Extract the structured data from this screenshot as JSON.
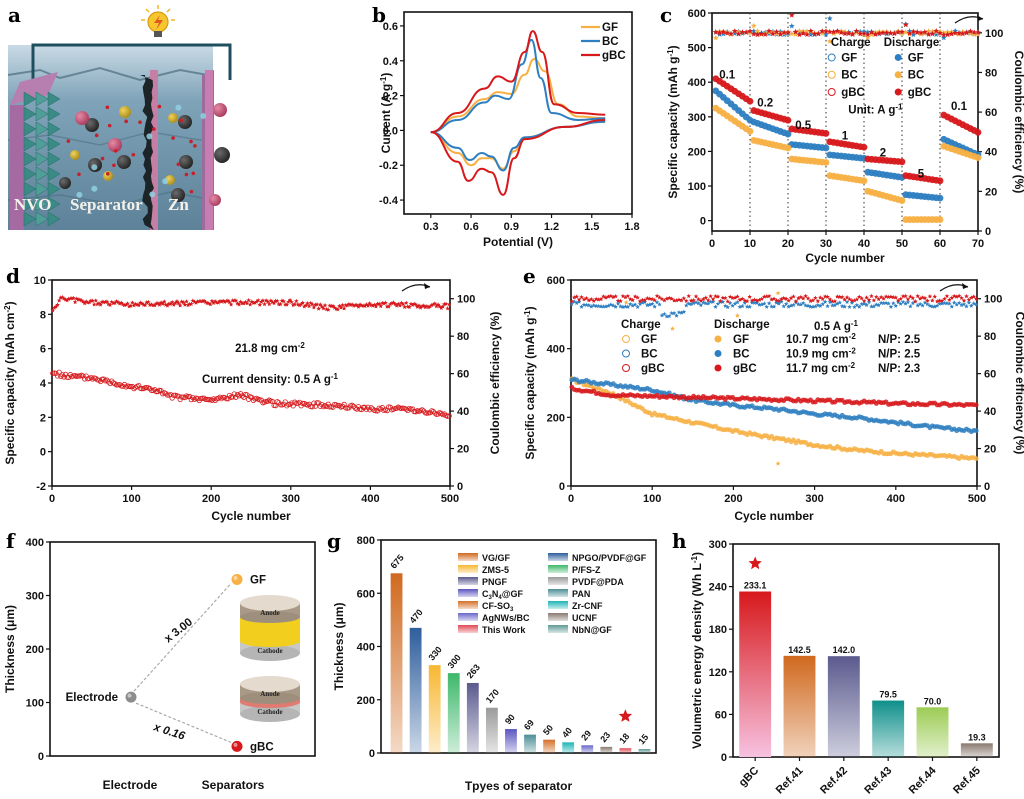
{
  "figure": {
    "panel_labels": [
      "a",
      "b",
      "c",
      "d",
      "e",
      "f",
      "g",
      "h"
    ]
  },
  "colors": {
    "GF_orange": "#f7b044",
    "BC_blue": "#2e7fc1",
    "gBC_red": "#d7191c",
    "axis": "#111111",
    "ref_gray": "#9a9a9a"
  },
  "panel_a": {
    "labels": [
      "NVO",
      "Separator",
      "Zn"
    ],
    "icons": [
      "lightbulb-icon"
    ]
  },
  "chart_data": [
    {
      "panel": "b",
      "type": "line",
      "title": "",
      "xlabel": "Potential  (V)",
      "ylabel": "Current (A g⁻¹)",
      "xlim": [
        0.1,
        1.8
      ],
      "ylim": [
        -0.48,
        0.68
      ],
      "xticks": [
        0.3,
        0.6,
        0.9,
        1.2,
        1.5,
        1.8
      ],
      "yticks": [
        -0.4,
        -0.2,
        0.0,
        0.2,
        0.4,
        0.6
      ],
      "legend": "top-right",
      "series": [
        {
          "name": "GF",
          "color": "#f7b044",
          "anodic": [
            [
              0.3,
              -0.01
            ],
            [
              0.5,
              0.08
            ],
            [
              0.7,
              0.18
            ],
            [
              0.8,
              0.22
            ],
            [
              0.9,
              0.21
            ],
            [
              1.0,
              0.32
            ],
            [
              1.07,
              0.41
            ],
            [
              1.15,
              0.34
            ],
            [
              1.25,
              0.15
            ],
            [
              1.4,
              0.08
            ],
            [
              1.6,
              0.07
            ]
          ],
          "cathodic": [
            [
              1.6,
              0.05
            ],
            [
              1.3,
              0.02
            ],
            [
              1.0,
              -0.04
            ],
            [
              0.92,
              -0.12
            ],
            [
              0.84,
              -0.22
            ],
            [
              0.75,
              -0.16
            ],
            [
              0.68,
              -0.16
            ],
            [
              0.6,
              -0.2
            ],
            [
              0.5,
              -0.13
            ],
            [
              0.3,
              -0.01
            ]
          ]
        },
        {
          "name": "BC",
          "color": "#2e7fc1",
          "anodic": [
            [
              0.3,
              -0.01
            ],
            [
              0.5,
              0.06
            ],
            [
              0.7,
              0.16
            ],
            [
              0.78,
              0.2
            ],
            [
              0.88,
              0.18
            ],
            [
              0.98,
              0.38
            ],
            [
              1.05,
              0.52
            ],
            [
              1.12,
              0.3
            ],
            [
              1.2,
              0.1
            ],
            [
              1.4,
              0.06
            ],
            [
              1.6,
              0.07
            ]
          ],
          "cathodic": [
            [
              1.6,
              0.05
            ],
            [
              1.3,
              0.02
            ],
            [
              1.0,
              -0.04
            ],
            [
              0.92,
              -0.1
            ],
            [
              0.84,
              -0.23
            ],
            [
              0.75,
              -0.15
            ],
            [
              0.68,
              -0.13
            ],
            [
              0.59,
              -0.17
            ],
            [
              0.5,
              -0.1
            ],
            [
              0.3,
              -0.01
            ]
          ]
        },
        {
          "name": "gBC",
          "color": "#d7191c",
          "anodic": [
            [
              0.3,
              -0.01
            ],
            [
              0.5,
              0.1
            ],
            [
              0.7,
              0.24
            ],
            [
              0.8,
              0.31
            ],
            [
              0.9,
              0.28
            ],
            [
              1.0,
              0.45
            ],
            [
              1.06,
              0.57
            ],
            [
              1.13,
              0.45
            ],
            [
              1.22,
              0.15
            ],
            [
              1.4,
              0.1
            ],
            [
              1.6,
              0.09
            ]
          ],
          "cathodic": [
            [
              1.6,
              0.06
            ],
            [
              1.3,
              0.02
            ],
            [
              1.0,
              -0.05
            ],
            [
              0.92,
              -0.16
            ],
            [
              0.84,
              -0.37
            ],
            [
              0.75,
              -0.24
            ],
            [
              0.68,
              -0.22
            ],
            [
              0.58,
              -0.29
            ],
            [
              0.5,
              -0.18
            ],
            [
              0.3,
              -0.01
            ]
          ]
        }
      ]
    },
    {
      "panel": "c",
      "type": "scatter",
      "xlabel": "Cycle number",
      "ylabel": "Specific capacity (mAh g⁻¹)",
      "ylabel_right": "Coulombic efficiency (%)",
      "xlim": [
        0,
        70
      ],
      "ylim": [
        -30,
        600
      ],
      "ylim_right": [
        0,
        110
      ],
      "xticks": [
        0,
        10,
        20,
        30,
        40,
        50,
        60,
        70
      ],
      "yticks": [
        0,
        100,
        200,
        300,
        400,
        500,
        600
      ],
      "yticks_right": [
        0,
        20,
        40,
        60,
        80,
        100
      ],
      "rate_labels": [
        {
          "text": "0.1",
          "x": 4,
          "y": 410
        },
        {
          "text": "0.2",
          "x": 14,
          "y": 330
        },
        {
          "text": "0.5",
          "x": 24,
          "y": 265
        },
        {
          "text": "1",
          "x": 35,
          "y": 235
        },
        {
          "text": "2",
          "x": 45,
          "y": 185
        },
        {
          "text": "5",
          "x": 55,
          "y": 125
        },
        {
          "text": "0.1",
          "x": 65,
          "y": 320
        }
      ],
      "unit_label": "Unit: A g⁻¹",
      "legend": {
        "charge_title": "Charge",
        "discharge_title": "Discharge",
        "entries": [
          "GF",
          "BC",
          "gBC"
        ]
      },
      "series": [
        {
          "name": "GF",
          "color": "#2e7fc1",
          "segments": [
            [
              375,
              290
            ],
            [
              285,
              250
            ],
            [
              220,
              210
            ],
            [
              190,
              180
            ],
            [
              140,
              125
            ],
            [
              75,
              65
            ],
            [
              235,
              190
            ]
          ]
        },
        {
          "name": "BC",
          "color": "#f7b044",
          "segments": [
            [
              325,
              258
            ],
            [
              232,
              210
            ],
            [
              178,
              168
            ],
            [
              130,
              115
            ],
            [
              85,
              58
            ],
            [
              3,
              3
            ],
            [
              215,
              182
            ]
          ]
        },
        {
          "name": "gBC",
          "color": "#d7191c",
          "segments": [
            [
              410,
              345
            ],
            [
              318,
              290
            ],
            [
              265,
              252
            ],
            [
              228,
              212
            ],
            [
              178,
              170
            ],
            [
              130,
              115
            ],
            [
              305,
              255
            ]
          ]
        }
      ],
      "ce_value": 100
    },
    {
      "panel": "d",
      "type": "scatter",
      "xlabel": "Cycle number",
      "ylabel": "Specific capacity (mAh cm⁻²)",
      "ylabel_right": "Coulombic efficiency (%)",
      "xlim": [
        0,
        500
      ],
      "ylim": [
        -2,
        10
      ],
      "ylim_right": [
        0,
        110
      ],
      "xticks": [
        0,
        100,
        200,
        300,
        400,
        500
      ],
      "yticks": [
        -2,
        0,
        2,
        4,
        6,
        8,
        10
      ],
      "yticks_right": [
        0,
        20,
        40,
        60,
        80,
        100
      ],
      "annotations": [
        "21.8 mg cm⁻²",
        "Current density: 0.5 A g⁻¹"
      ],
      "series": [
        {
          "name": "capacity",
          "color": "#d7191c",
          "points": [
            [
              0,
              4.6
            ],
            [
              20,
              4.4
            ],
            [
              50,
              4.3
            ],
            [
              100,
              3.8
            ],
            [
              130,
              3.6
            ],
            [
              150,
              3.2
            ],
            [
              200,
              3.0
            ],
            [
              235,
              3.3
            ],
            [
              280,
              2.8
            ],
            [
              350,
              2.7
            ],
            [
              400,
              2.5
            ],
            [
              450,
              2.5
            ],
            [
              500,
              2.1
            ]
          ]
        },
        {
          "name": "CE",
          "color": "#d7191c",
          "points": [
            [
              0,
              92
            ],
            [
              10,
              100
            ],
            [
              50,
              98
            ],
            [
              100,
              97
            ],
            [
              200,
              98
            ],
            [
              300,
              98
            ],
            [
              350,
              95
            ],
            [
              400,
              97
            ],
            [
              500,
              96
            ]
          ]
        }
      ]
    },
    {
      "panel": "e",
      "type": "scatter",
      "xlabel": "Cycle number",
      "ylabel": "Specific capacity (mAh g⁻¹)",
      "ylabel_right": "Coulombic efficiency (%)",
      "xlim": [
        0,
        500
      ],
      "ylim": [
        0,
        600
      ],
      "ylim_right": [
        0,
        110
      ],
      "xticks": [
        0,
        100,
        200,
        300,
        400,
        500
      ],
      "yticks": [
        0,
        200,
        400,
        600
      ],
      "yticks_right": [
        0,
        20,
        40,
        60,
        80,
        100
      ],
      "legend": {
        "charge_title": "Charge",
        "discharge_title": "Discharge",
        "entries": [
          "GF",
          "BC",
          "gBC"
        ],
        "conditions_title": "0.5 A g⁻¹",
        "loadings": [
          "10.7 mg cm⁻²",
          "10.9 mg cm⁻²",
          "11.7 mg cm⁻²"
        ],
        "np_ratios": [
          "N/P: 2.5",
          "N/P: 2.5",
          "N/P: 2.3"
        ]
      },
      "series": [
        {
          "name": "GF",
          "color": "#f7b044",
          "points": [
            [
              0,
              310
            ],
            [
              50,
              270
            ],
            [
              100,
              210
            ],
            [
              150,
              185
            ],
            [
              200,
              160
            ],
            [
              250,
              140
            ],
            [
              300,
              120
            ],
            [
              350,
              105
            ],
            [
              400,
              95
            ],
            [
              450,
              88
            ],
            [
              500,
              80
            ]
          ]
        },
        {
          "name": "BC",
          "color": "#2e7fc1",
          "points": [
            [
              0,
              310
            ],
            [
              50,
              295
            ],
            [
              100,
              280
            ],
            [
              150,
              250
            ],
            [
              200,
              235
            ],
            [
              250,
              225
            ],
            [
              300,
              210
            ],
            [
              350,
              200
            ],
            [
              400,
              185
            ],
            [
              450,
              170
            ],
            [
              500,
              160
            ]
          ]
        },
        {
          "name": "gBC",
          "color": "#d7191c",
          "points": [
            [
              0,
              285
            ],
            [
              50,
              265
            ],
            [
              100,
              262
            ],
            [
              150,
              258
            ],
            [
              200,
              255
            ],
            [
              250,
              252
            ],
            [
              300,
              248
            ],
            [
              350,
              245
            ],
            [
              400,
              240
            ],
            [
              450,
              238
            ],
            [
              500,
              235
            ]
          ]
        }
      ],
      "ce_value": 100
    },
    {
      "panel": "f",
      "type": "scatter",
      "xlabel_left": "Electrode",
      "xlabel_right": "Separators",
      "ylabel": "Thickness (μm)",
      "ylim": [
        0,
        400
      ],
      "yticks": [
        0,
        100,
        200,
        300,
        400
      ],
      "points": [
        {
          "name": "Electrode",
          "y": 110,
          "color": "#8c8c8c"
        },
        {
          "name": "GF",
          "y": 330,
          "color": "#f7b044"
        },
        {
          "name": "gBC",
          "y": 18,
          "color": "#d7191c"
        }
      ],
      "ratios": [
        {
          "text": "x 3.00",
          "color": "#f08a1c"
        },
        {
          "text": "x 0.16",
          "color": "#d7191c"
        }
      ],
      "inset_labels": [
        "Anode",
        "Cathode",
        "Anode",
        "Cathode"
      ]
    },
    {
      "panel": "g",
      "type": "bar",
      "xlabel": "Tpyes of separator",
      "ylabel": "Thickness (μm)",
      "ylim": [
        0,
        800
      ],
      "yticks": [
        0,
        200,
        400,
        600,
        800
      ],
      "categories": [
        "VG/GF",
        "NPGO/PVDF@GF",
        "ZMS-5",
        "P/FS-Z",
        "PNGF",
        "PVDF@PDA",
        "C₃N₄@GF",
        "PAN",
        "CF-SO₃",
        "Zr-CNF",
        "AgNWs/BC",
        "UCNF",
        "This Work",
        "NbN@GF"
      ],
      "values": [
        675,
        470,
        330,
        300,
        263,
        170,
        90,
        69,
        50,
        40,
        29,
        23,
        18,
        15
      ],
      "value_labels": [
        "675",
        "470",
        "330",
        "300",
        "263",
        "170",
        "90",
        "69",
        "50",
        "40",
        "29",
        "23",
        "18",
        "15"
      ],
      "colors": [
        "#d0691e",
        "#2e5e9c",
        "#f7b731",
        "#3db86a",
        "#5b5a8e",
        "#9a9a9a",
        "#5a55c0",
        "#4b8f95",
        "#d5702a",
        "#1fb5b5",
        "#6b67c9",
        "#8a7a70",
        "#e04a55",
        "#5e9a96"
      ],
      "legend_col1": [
        "VG/GF",
        "ZMS-5",
        "PNGF",
        "C₃N₄@GF",
        "CF-SO₃",
        "AgNWs/BC",
        "This Work"
      ],
      "legend_col2": [
        "NPGO/PVDF@GF",
        "P/FS-Z",
        "PVDF@PDA",
        "PAN",
        "Zr-CNF",
        "UCNF",
        "NbN@GF"
      ],
      "highlight": "This Work"
    },
    {
      "panel": "h",
      "type": "bar",
      "xlabel": "",
      "ylabel": "Volumetric energy density (Wh L⁻¹)",
      "ylim": [
        0,
        300
      ],
      "yticks": [
        0,
        60,
        120,
        180,
        240,
        300
      ],
      "categories": [
        "gBC",
        "Ref.41",
        "Ref.42",
        "Ref.43",
        "Ref.44",
        "Ref.45"
      ],
      "values": [
        233.1,
        142.5,
        142.0,
        79.5,
        70.0,
        19.3
      ],
      "value_labels": [
        "233.1",
        "142.5",
        "142.0",
        "79.5",
        "70.0",
        "19.3"
      ],
      "colors": [
        "#d7191c",
        "#d0691e",
        "#5b5a8e",
        "#0f8f8a",
        "#9ccc55",
        "#8a7a70"
      ],
      "highlight": "gBC"
    }
  ]
}
